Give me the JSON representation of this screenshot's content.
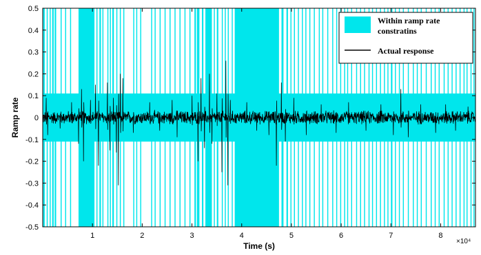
{
  "chart_data": {
    "type": "line",
    "xlabel": "Time (s)",
    "ylabel": "Ramp rate",
    "x_scale_label": "×10⁴",
    "x_tick_labels": [
      "1",
      "2",
      "3",
      "4",
      "5",
      "6",
      "7",
      "8"
    ],
    "x_tick_values": [
      1,
      2,
      3,
      4,
      5,
      6,
      7,
      8
    ],
    "y_tick_labels": [
      "0.5",
      "0.4",
      "0.3",
      "0.2",
      "0.1",
      "0",
      "-0.1",
      "-0.2",
      "-0.3",
      "-0.4",
      "-0.5"
    ],
    "y_tick_values": [
      0.5,
      0.4,
      0.3,
      0.2,
      0.1,
      0,
      -0.1,
      -0.2,
      -0.3,
      -0.4,
      -0.5
    ],
    "xlim": [
      0,
      8.7
    ],
    "ylim": [
      -0.5,
      0.5
    ],
    "grid": false,
    "legend_position": "top-right",
    "colors": {
      "band": "#00e6ec",
      "response": "#000000",
      "axis": "#000000"
    },
    "series": [
      {
        "name": "Within ramp rate constratins",
        "kind": "band",
        "band_limit": 0.11,
        "full_height_intervals": [
          [
            0.01,
            0.04
          ],
          [
            0.08,
            0.1
          ],
          [
            0.14,
            0.16
          ],
          [
            0.19,
            0.22
          ],
          [
            0.24,
            0.27
          ],
          [
            0.36,
            0.38
          ],
          [
            0.45,
            0.47
          ],
          [
            0.55,
            0.57
          ],
          [
            0.72,
            1.04
          ],
          [
            1.08,
            1.1
          ],
          [
            1.14,
            1.17
          ],
          [
            1.2,
            1.22
          ],
          [
            1.3,
            1.32
          ],
          [
            1.35,
            1.37
          ],
          [
            1.4,
            1.43
          ],
          [
            1.48,
            1.5
          ],
          [
            1.55,
            1.57
          ],
          [
            1.62,
            1.64
          ],
          [
            1.82,
            1.84
          ],
          [
            1.88,
            1.9
          ],
          [
            1.96,
            1.98
          ],
          [
            2.18,
            2.2
          ],
          [
            2.25,
            2.27
          ],
          [
            2.35,
            2.37
          ],
          [
            2.45,
            2.47
          ],
          [
            2.55,
            2.57
          ],
          [
            2.65,
            2.67
          ],
          [
            2.75,
            2.77
          ],
          [
            2.85,
            2.87
          ],
          [
            2.95,
            2.97
          ],
          [
            3.05,
            3.08
          ],
          [
            3.1,
            3.15
          ],
          [
            3.2,
            3.23
          ],
          [
            3.27,
            3.4
          ],
          [
            3.44,
            3.46
          ],
          [
            3.5,
            3.53
          ],
          [
            3.6,
            3.62
          ],
          [
            3.66,
            3.68
          ],
          [
            3.72,
            3.74
          ],
          [
            3.8,
            3.82
          ],
          [
            3.86,
            4.75
          ],
          [
            4.8,
            4.84
          ],
          [
            4.9,
            4.93
          ],
          [
            4.98,
            5.0
          ],
          [
            5.05,
            5.07
          ],
          [
            5.13,
            5.15
          ],
          [
            5.21,
            5.23
          ],
          [
            5.28,
            5.3
          ],
          [
            5.36,
            5.38
          ],
          [
            5.45,
            5.47
          ],
          [
            5.55,
            5.57
          ],
          [
            5.62,
            5.64
          ],
          [
            5.72,
            5.74
          ],
          [
            5.82,
            5.84
          ],
          [
            5.9,
            5.92
          ],
          [
            5.98,
            6.0
          ],
          [
            6.06,
            6.08
          ],
          [
            6.12,
            6.14
          ],
          [
            6.2,
            6.22
          ],
          [
            6.3,
            6.32
          ],
          [
            6.38,
            6.4
          ],
          [
            6.46,
            6.48
          ],
          [
            6.55,
            6.57
          ],
          [
            6.62,
            6.64
          ],
          [
            6.7,
            6.72
          ],
          [
            6.78,
            6.8
          ],
          [
            6.86,
            6.88
          ],
          [
            6.93,
            6.95
          ],
          [
            7.0,
            7.03
          ],
          [
            7.08,
            7.1
          ],
          [
            7.16,
            7.18
          ],
          [
            7.24,
            7.26
          ],
          [
            7.34,
            7.36
          ],
          [
            7.44,
            7.46
          ],
          [
            7.52,
            7.54
          ],
          [
            7.6,
            7.62
          ],
          [
            7.7,
            7.72
          ],
          [
            7.8,
            7.82
          ],
          [
            7.88,
            7.9
          ],
          [
            7.96,
            7.98
          ],
          [
            8.06,
            8.08
          ],
          [
            8.14,
            8.16
          ],
          [
            8.22,
            8.24
          ],
          [
            8.3,
            8.32
          ],
          [
            8.38,
            8.4
          ],
          [
            8.46,
            8.48
          ],
          [
            8.52,
            8.54
          ],
          [
            8.6,
            8.62
          ],
          [
            8.66,
            8.68
          ]
        ]
      },
      {
        "name": "Actual response",
        "kind": "line",
        "sample_count": 1740,
        "base_amplitude": 0.022,
        "spikes": [
          {
            "x": 0.07,
            "y": 0.09
          },
          {
            "x": 0.1,
            "y": -0.08
          },
          {
            "x": 0.35,
            "y": -0.05
          },
          {
            "x": 0.58,
            "y": 0.07
          },
          {
            "x": 0.72,
            "y": -0.12
          },
          {
            "x": 0.78,
            "y": 0.13
          },
          {
            "x": 0.82,
            "y": -0.2
          },
          {
            "x": 0.96,
            "y": 0.08
          },
          {
            "x": 1.06,
            "y": 0.15
          },
          {
            "x": 1.12,
            "y": -0.22
          },
          {
            "x": 1.3,
            "y": 0.16
          },
          {
            "x": 1.35,
            "y": -0.15
          },
          {
            "x": 1.42,
            "y": 0.09
          },
          {
            "x": 1.48,
            "y": -0.16
          },
          {
            "x": 1.52,
            "y": -0.31
          },
          {
            "x": 1.56,
            "y": 0.2
          },
          {
            "x": 1.61,
            "y": 0.18
          },
          {
            "x": 1.82,
            "y": -0.07
          },
          {
            "x": 2.15,
            "y": 0.07
          },
          {
            "x": 2.35,
            "y": -0.06
          },
          {
            "x": 2.6,
            "y": 0.08
          },
          {
            "x": 2.7,
            "y": -0.09
          },
          {
            "x": 3.0,
            "y": 0.1
          },
          {
            "x": 3.12,
            "y": -0.2
          },
          {
            "x": 3.18,
            "y": 0.18
          },
          {
            "x": 3.25,
            "y": -0.14
          },
          {
            "x": 3.35,
            "y": 0.2
          },
          {
            "x": 3.4,
            "y": -0.12
          },
          {
            "x": 3.5,
            "y": 0.11
          },
          {
            "x": 3.6,
            "y": -0.25
          },
          {
            "x": 3.68,
            "y": 0.26
          },
          {
            "x": 3.72,
            "y": -0.31
          },
          {
            "x": 3.77,
            "y": 0.08
          },
          {
            "x": 4.1,
            "y": 0.07
          },
          {
            "x": 4.3,
            "y": -0.06
          },
          {
            "x": 4.55,
            "y": -0.08
          },
          {
            "x": 4.7,
            "y": -0.22
          },
          {
            "x": 4.8,
            "y": 0.16
          },
          {
            "x": 4.88,
            "y": -0.11
          },
          {
            "x": 5.05,
            "y": 0.09
          },
          {
            "x": 5.3,
            "y": -0.08
          },
          {
            "x": 5.6,
            "y": 0.06
          },
          {
            "x": 5.9,
            "y": -0.07
          },
          {
            "x": 6.15,
            "y": 0.07
          },
          {
            "x": 6.5,
            "y": -0.06
          },
          {
            "x": 6.8,
            "y": 0.06
          },
          {
            "x": 7.05,
            "y": -0.08
          },
          {
            "x": 7.2,
            "y": 0.13
          },
          {
            "x": 7.35,
            "y": -0.09
          },
          {
            "x": 7.6,
            "y": 0.06
          },
          {
            "x": 7.9,
            "y": -0.07
          },
          {
            "x": 8.1,
            "y": 0.06
          },
          {
            "x": 8.3,
            "y": -0.06
          },
          {
            "x": 8.55,
            "y": 0.05
          }
        ]
      }
    ],
    "legend": {
      "entries": [
        {
          "label_lines": [
            "Within ramp rate",
            "constratins"
          ]
        },
        {
          "label_lines": [
            "Actual response"
          ]
        }
      ]
    }
  }
}
